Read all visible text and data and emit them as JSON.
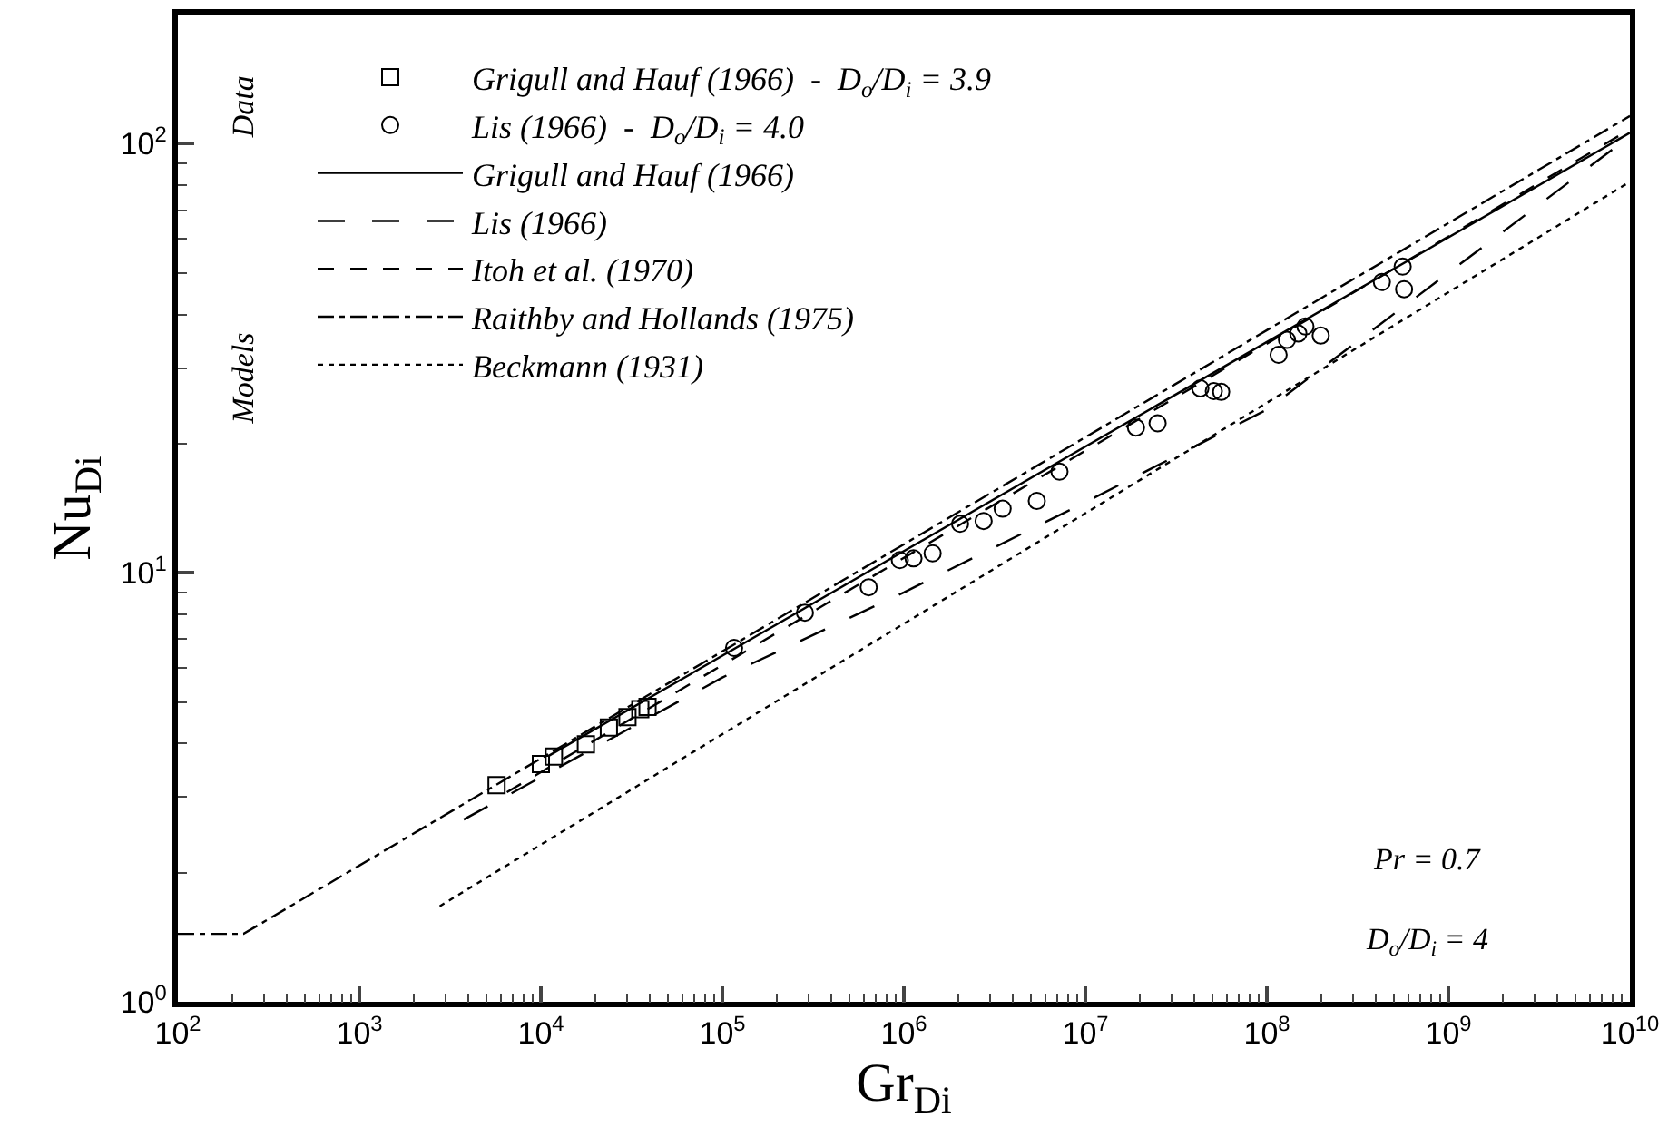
{
  "chart_data": {
    "type": "scatter",
    "xlabel": "Gr$_{Di}$",
    "ylabel": "Nu$_{Di}$",
    "log": "xy",
    "grid": false,
    "legend": "top left",
    "xlim": [
      100,
      10000000000
    ],
    "ylim": [
      1,
      200
    ],
    "xticks": [
      {
        "value": 100,
        "label": "10$^{2}$"
      },
      {
        "value": 200,
        "label": null
      },
      {
        "value": 300,
        "label": null
      },
      {
        "value": 400,
        "label": null
      },
      {
        "value": 500,
        "label": null
      },
      {
        "value": 600,
        "label": null
      },
      {
        "value": 700,
        "label": null
      },
      {
        "value": 800,
        "label": null
      },
      {
        "value": 900,
        "label": null
      },
      {
        "value": 1000,
        "label": "10$^{3}$"
      },
      {
        "value": 2000,
        "label": null
      },
      {
        "value": 3000,
        "label": null
      },
      {
        "value": 4000,
        "label": null
      },
      {
        "value": 5000,
        "label": null
      },
      {
        "value": 6000,
        "label": null
      },
      {
        "value": 7000,
        "label": null
      },
      {
        "value": 8000,
        "label": null
      },
      {
        "value": 9000,
        "label": null
      },
      {
        "value": 10000,
        "label": "10$^{4}$"
      },
      {
        "value": 20000,
        "label": null
      },
      {
        "value": 30000,
        "label": null
      },
      {
        "value": 40000,
        "label": null
      },
      {
        "value": 50000,
        "label": null
      },
      {
        "value": 60000,
        "label": null
      },
      {
        "value": 70000,
        "label": null
      },
      {
        "value": 80000,
        "label": null
      },
      {
        "value": 90000,
        "label": null
      },
      {
        "value": 100000,
        "label": "10$^{5}$"
      },
      {
        "value": 200000,
        "label": null
      },
      {
        "value": 300000,
        "label": null
      },
      {
        "value": 400000,
        "label": null
      },
      {
        "value": 500000,
        "label": null
      },
      {
        "value": 600000,
        "label": null
      },
      {
        "value": 700000,
        "label": null
      },
      {
        "value": 800000,
        "label": null
      },
      {
        "value": 900000,
        "label": null
      },
      {
        "value": 1000000,
        "label": "10$^{6}$"
      },
      {
        "value": 2000000,
        "label": null
      },
      {
        "value": 3000000,
        "label": null
      },
      {
        "value": 4000000,
        "label": null
      },
      {
        "value": 5000000,
        "label": null
      },
      {
        "value": 6000000,
        "label": null
      },
      {
        "value": 7000000,
        "label": null
      },
      {
        "value": 8000000,
        "label": null
      },
      {
        "value": 9000000,
        "label": null
      },
      {
        "value": 10000000,
        "label": "10$^{7}$"
      },
      {
        "value": 20000000,
        "label": null
      },
      {
        "value": 30000000,
        "label": null
      },
      {
        "value": 40000000,
        "label": null
      },
      {
        "value": 50000000,
        "label": null
      },
      {
        "value": 60000000,
        "label": null
      },
      {
        "value": 70000000,
        "label": null
      },
      {
        "value": 80000000,
        "label": null
      },
      {
        "value": 90000000,
        "label": null
      },
      {
        "value": 100000000,
        "label": "10$^{8}$"
      },
      {
        "value": 200000000,
        "label": null
      },
      {
        "value": 300000000,
        "label": null
      },
      {
        "value": 400000000,
        "label": null
      },
      {
        "value": 500000000,
        "label": null
      },
      {
        "value": 600000000,
        "label": null
      },
      {
        "value": 700000000,
        "label": null
      },
      {
        "value": 800000000,
        "label": null
      },
      {
        "value": 900000000,
        "label": null
      },
      {
        "value": 1000000000,
        "label": "10$^{9}$"
      },
      {
        "value": 2000000000,
        "label": null
      },
      {
        "value": 3000000000,
        "label": null
      },
      {
        "value": 4000000000,
        "label": null
      },
      {
        "value": 5000000000,
        "label": null
      },
      {
        "value": 6000000000,
        "label": null
      },
      {
        "value": 7000000000,
        "label": null
      },
      {
        "value": 8000000000,
        "label": null
      },
      {
        "value": 9000000000,
        "label": null
      },
      {
        "value": 10000000000,
        "label": "10$^{10}$"
      }
    ],
    "yticks": [
      {
        "value": 1,
        "label": "10$^{0}$"
      },
      {
        "value": 2,
        "label": null
      },
      {
        "value": 3,
        "label": null
      },
      {
        "value": 4,
        "label": null
      },
      {
        "value": 5,
        "label": null
      },
      {
        "value": 6,
        "label": null
      },
      {
        "value": 7,
        "label": null
      },
      {
        "value": 8,
        "label": null
      },
      {
        "value": 9,
        "label": null
      },
      {
        "value": 10,
        "label": "10$^{1}$"
      },
      {
        "value": 20,
        "label": null
      },
      {
        "value": 30,
        "label": null
      },
      {
        "value": 40,
        "label": null
      },
      {
        "value": 50,
        "label": null
      },
      {
        "value": 60,
        "label": null
      },
      {
        "value": 70,
        "label": null
      },
      {
        "value": 80,
        "label": null
      },
      {
        "value": 90,
        "label": null
      },
      {
        "value": 100,
        "label": "10$^{2}$"
      },
      {
        "value": 200,
        "label": null
      }
    ],
    "annotations": [
      "Data",
      "Models",
      "Pr = 0.7",
      "D$_{o}$/D$_{i}$ = 4"
    ],
    "series": [
      {
        "name": "Grigull and Hauf (1966)  -  D$_{o}$/D$_{i}$ = 3.9",
        "marker": "square",
        "color": "#000000",
        "x": [
          5700,
          10000,
          11800,
          17700,
          23700,
          30000,
          35300,
          38700
        ],
        "values": [
          3.2,
          3.58,
          3.73,
          3.98,
          4.36,
          4.61,
          4.81,
          4.87
        ]
      },
      {
        "name": "Lis (1966)  -  D$_{o}$/D$_{i}$ = 4.0",
        "marker": "circle",
        "color": "#000000",
        "x": [
          116000,
          285000,
          640000,
          950000,
          1130000,
          1440000,
          2040000,
          2750000,
          3500000,
          5400000,
          7200000,
          19000000,
          25000000,
          43000000,
          51000000,
          56000000,
          116000000,
          129000000,
          149000000,
          163000000,
          198000000,
          430000000,
          560000000,
          570000000
        ],
        "values": [
          6.68,
          8.07,
          9.25,
          10.7,
          10.8,
          11.1,
          13.0,
          13.2,
          14.1,
          14.7,
          17.2,
          21.8,
          22.3,
          26.9,
          26.5,
          26.4,
          32.2,
          34.9,
          36.1,
          37.5,
          35.7,
          47.6,
          51.7,
          45.8
        ]
      },
      {
        "name": "Grigull and Hauf (1966)",
        "type": "line",
        "line_style": "solid",
        "color": "#000000",
        "x": [
          11000,
          10000000000
        ],
        "values": [
          3.74,
          106
        ]
      },
      {
        "name": "Lis (1966)",
        "type": "line",
        "line_style": "longdash",
        "color": "#000000",
        "x": [
          3760,
          100000,
          1000000,
          10000000,
          100000000,
          1000000000,
          10000000000
        ],
        "values": [
          2.66,
          5.7,
          9.0,
          14.6,
          24,
          50,
          104
        ]
      },
      {
        "name": "Itoh et al. (1970)",
        "type": "line",
        "line_style": "dashed",
        "color": "#000000",
        "x": [
          6500,
          10000000000
        ],
        "values": [
          3.08,
          108
        ]
      },
      {
        "name": "Raithby and Hollands (1975)",
        "type": "line",
        "line_style": "dashdot",
        "color": "#000000",
        "x": [
          100,
          230,
          10000000000
        ],
        "values": [
          1.44,
          1.44,
          116
        ]
      },
      {
        "name": "Beckmann (1931)",
        "type": "line",
        "line_style": "dotted",
        "color": "#000000",
        "x": [
          2770,
          10000000000
        ],
        "values": [
          1.67,
          81.5
        ]
      }
    ]
  }
}
